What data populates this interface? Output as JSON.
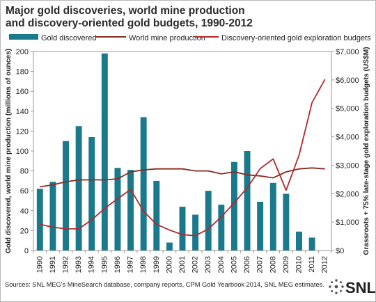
{
  "chart_data": {
    "type": "bar",
    "title_lines": [
      "Major gold discoveries, world mine production",
      "and discovery-oriented gold budgets, 1990-2012"
    ],
    "ylabel_left": "Gold discovered, world mine production (millions of ounces)",
    "ylabel_right": "Grassroots + 75% late-stage gold exploration budgets (US$M)",
    "ylim_left": [
      0,
      200
    ],
    "yticks_left": [
      "0",
      "20",
      "40",
      "60",
      "80",
      "100",
      "120",
      "140",
      "160",
      "180",
      "200"
    ],
    "ylim_right": [
      0,
      7000
    ],
    "yticks_right": [
      "$0",
      "$1,000",
      "$2,000",
      "$3,000",
      "$4,000",
      "$5,000",
      "$6,000",
      "$7,000"
    ],
    "categories": [
      "1990",
      "1991",
      "1992",
      "1993",
      "1994",
      "1995",
      "1996",
      "1997",
      "1998",
      "1999",
      "2000",
      "2001",
      "2002",
      "2003",
      "2004",
      "2005",
      "2006",
      "2007",
      "2008",
      "2009",
      "2010",
      "2011",
      "2012"
    ],
    "legend_position": "top",
    "series": [
      {
        "name": "Gold discovered",
        "kind": "bar",
        "axis": "left",
        "color": "#1a7a8c",
        "values": [
          62,
          69,
          110,
          125,
          114,
          198,
          83,
          81,
          134,
          70,
          8,
          44,
          36,
          60,
          46,
          89,
          100,
          49,
          68,
          57,
          19,
          13,
          null
        ]
      },
      {
        "name": "World mine production",
        "kind": "line",
        "axis": "left",
        "color": "#8b2a20",
        "values": [
          64,
          66,
          69,
          71,
          71,
          71,
          72,
          79,
          81,
          82,
          82,
          82,
          80,
          80,
          77,
          79,
          76,
          75,
          73,
          79,
          82,
          83,
          82
        ]
      },
      {
        "name": "Discovery-oriented gold exploration budgets",
        "kind": "line",
        "axis": "right",
        "color": "#b02a2a",
        "values": [
          920,
          820,
          760,
          760,
          1080,
          1480,
          1820,
          2150,
          1380,
          920,
          720,
          560,
          520,
          760,
          1180,
          1680,
          2200,
          2880,
          3220,
          2120,
          3350,
          5200,
          6020
        ]
      }
    ]
  },
  "source_text": "Sources: SNL MEG's MineSearch database, company reports, CPM Gold Yearbook 2014, SNL MEG estimates.",
  "logo": {
    "text": "SNL"
  }
}
